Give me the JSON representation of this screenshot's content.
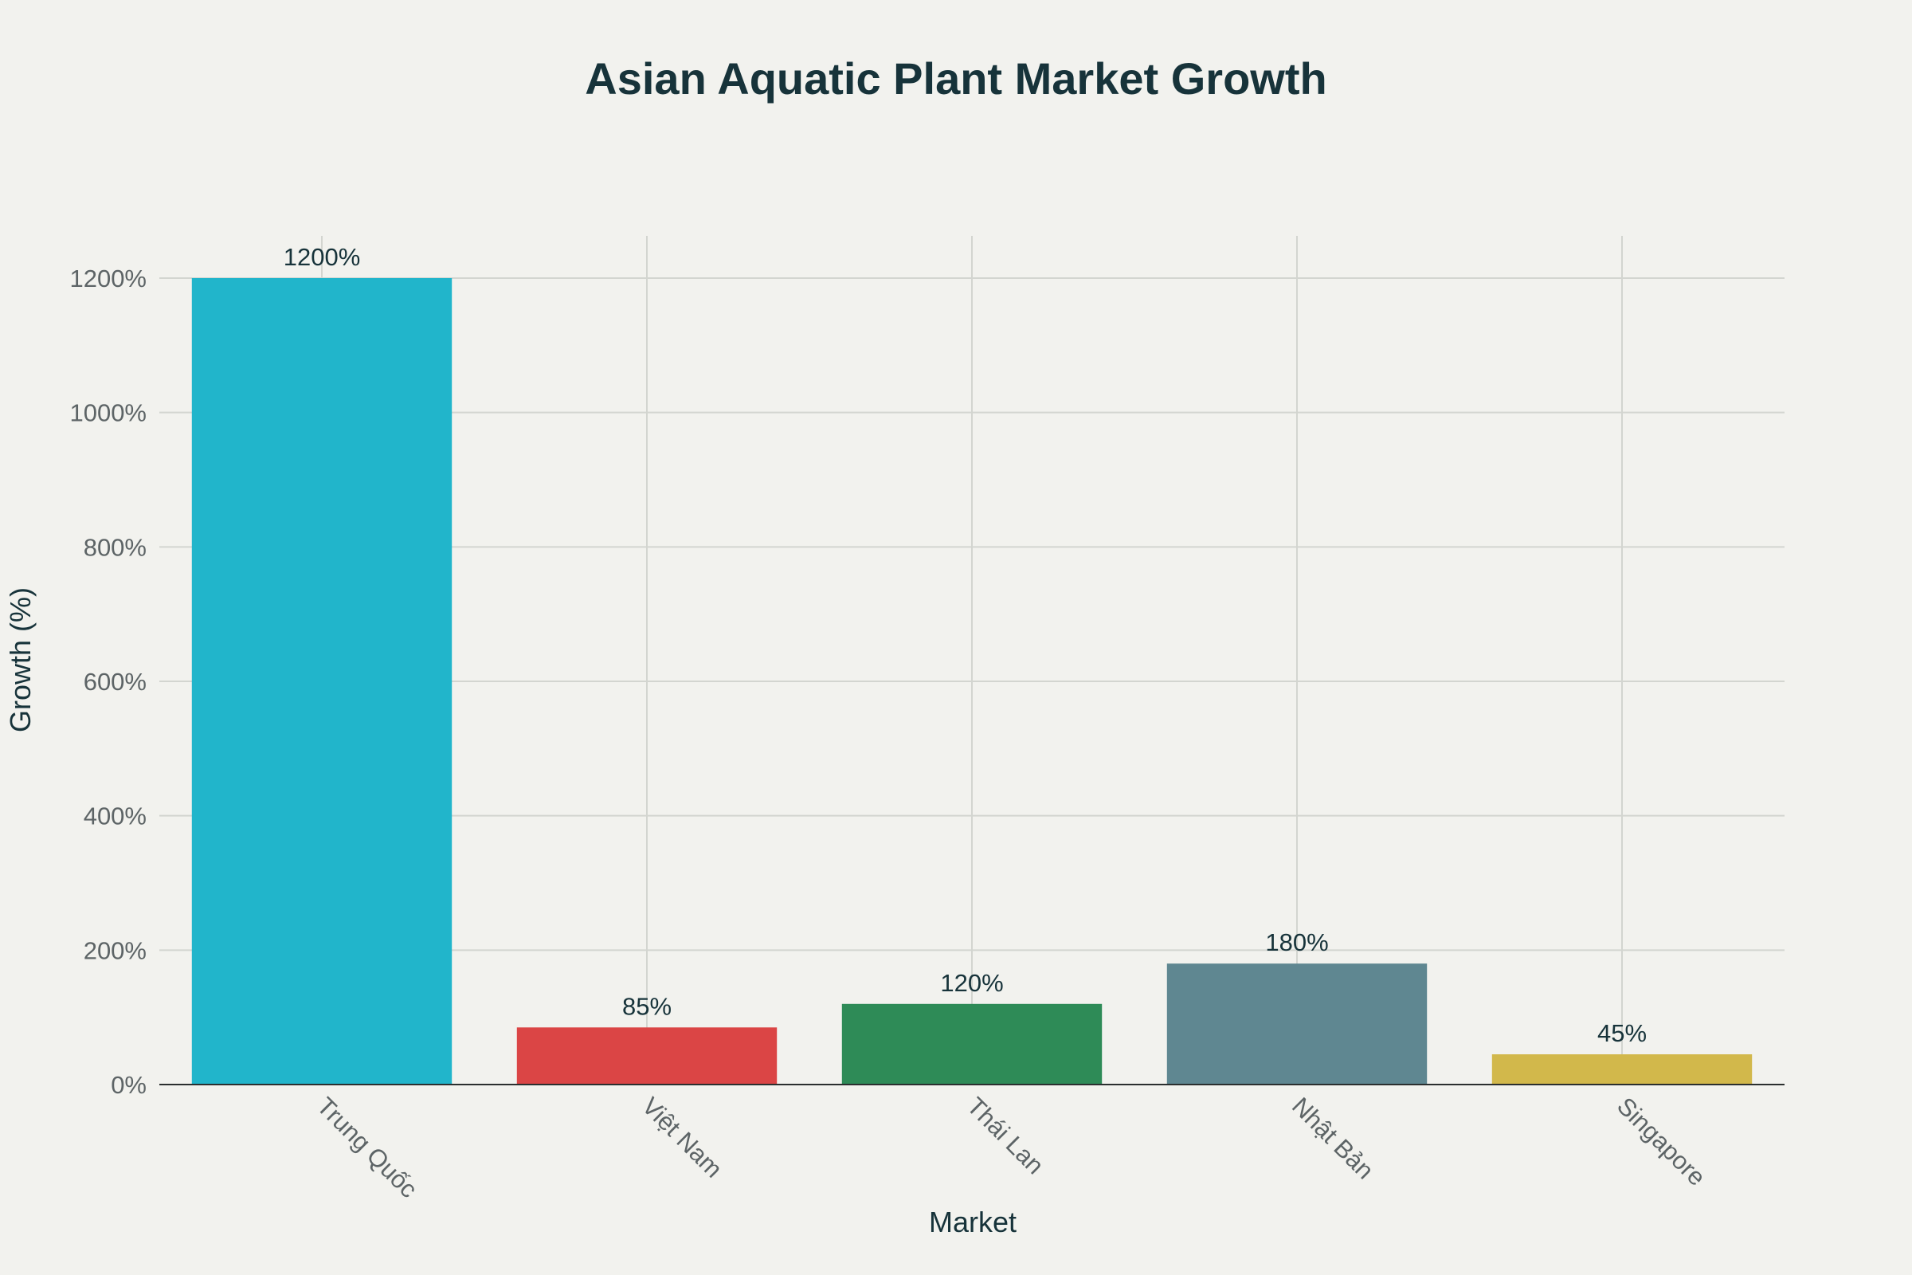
{
  "chart_data": {
    "type": "bar",
    "title": "Asian Aquatic Plant Market Growth",
    "xlabel": "Market",
    "ylabel": "Growth (%)",
    "categories": [
      "Trung Quốc",
      "Việt Nam",
      "Thái Lan",
      "Nhật Bản",
      "Singapore"
    ],
    "values": [
      1200,
      85,
      120,
      180,
      45
    ],
    "data_labels": [
      "1200%",
      "85%",
      "120%",
      "180%",
      "45%"
    ],
    "colors": [
      "#21b5cb",
      "#db4545",
      "#2e8b57",
      "#5f8791",
      "#d2b84b"
    ],
    "ylim": [
      0,
      1200
    ],
    "yticks": [
      0,
      200,
      400,
      600,
      800,
      1000,
      1200
    ],
    "ytick_labels": [
      "0%",
      "200%",
      "400%",
      "600%",
      "800%",
      "1000%",
      "1200%"
    ],
    "grid": true,
    "legend": "none"
  }
}
